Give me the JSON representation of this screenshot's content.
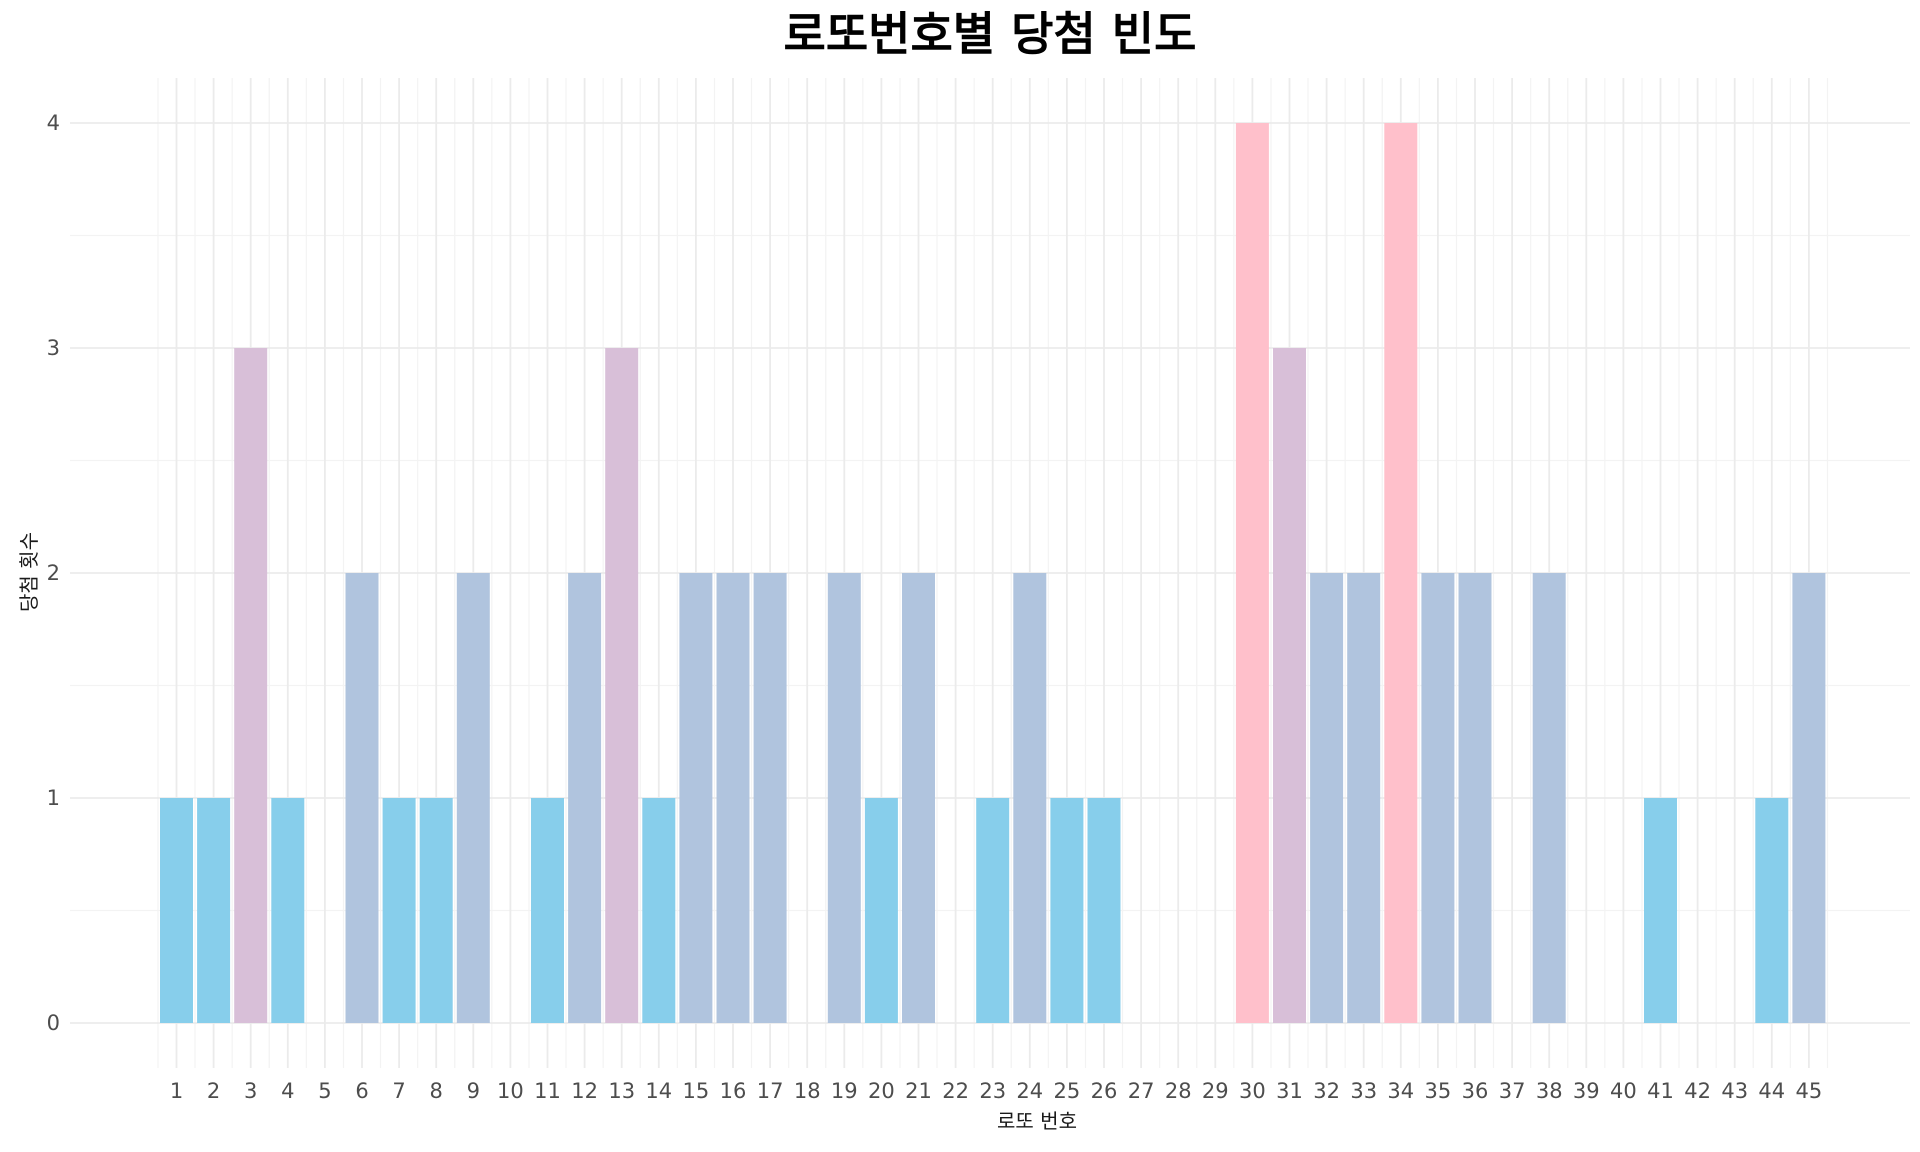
{
  "chart_data": {
    "type": "bar",
    "title": "로또번호별 당첨 빈도",
    "xlabel": "로또 번호",
    "ylabel": "당첨 횟수",
    "ylim": [
      -0.2,
      4.2
    ],
    "yticks": [
      0,
      1,
      2,
      3,
      4
    ],
    "grid": true,
    "categories": [
      "1",
      "2",
      "3",
      "4",
      "5",
      "6",
      "7",
      "8",
      "9",
      "10",
      "11",
      "12",
      "13",
      "14",
      "15",
      "16",
      "17",
      "18",
      "19",
      "20",
      "21",
      "22",
      "23",
      "24",
      "25",
      "26",
      "27",
      "28",
      "29",
      "30",
      "31",
      "32",
      "33",
      "34",
      "35",
      "36",
      "37",
      "38",
      "39",
      "40",
      "41",
      "42",
      "43",
      "44",
      "45"
    ],
    "values": [
      1,
      1,
      3,
      1,
      0,
      2,
      1,
      1,
      2,
      0,
      1,
      2,
      3,
      1,
      2,
      2,
      2,
      0,
      2,
      1,
      2,
      0,
      1,
      2,
      1,
      1,
      0,
      0,
      0,
      4,
      3,
      2,
      2,
      4,
      2,
      2,
      0,
      2,
      0,
      0,
      1,
      0,
      0,
      1,
      2
    ],
    "colors": {
      "1": "#87ceeb",
      "2": "#b0c4de",
      "3": "#d8bfd8",
      "4": "#ffc0cb"
    }
  }
}
